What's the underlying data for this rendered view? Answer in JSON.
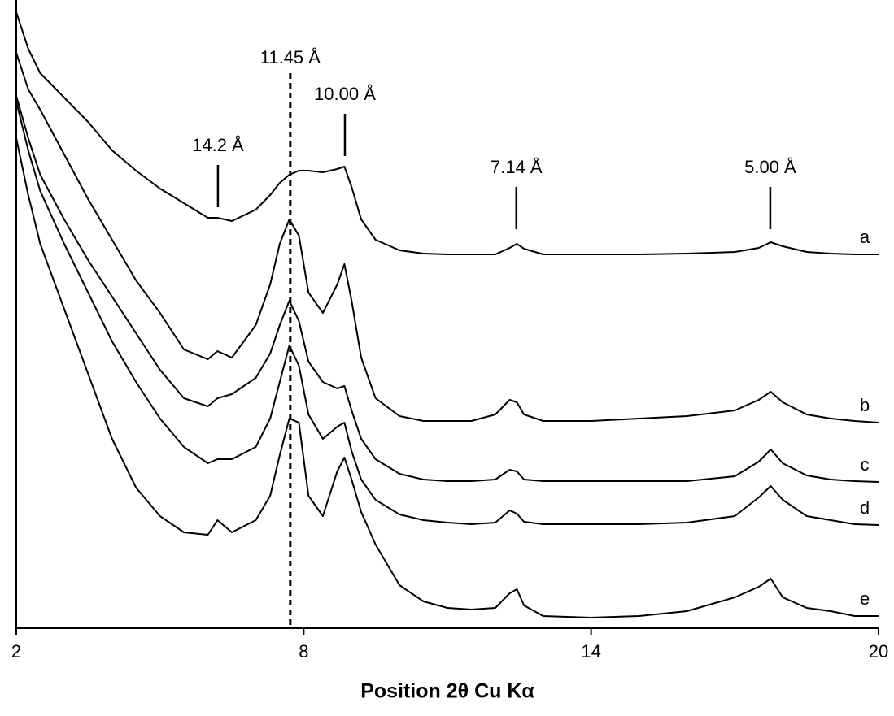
{
  "chart_data": {
    "type": "line",
    "x_label": "Position 2θ Cu Kα",
    "xlim": [
      2,
      20
    ],
    "xticks": [
      2,
      8,
      14,
      20
    ],
    "ylim": [
      0,
      773
    ],
    "x": [
      2,
      2.25,
      2.5,
      3,
      3.5,
      4,
      4.5,
      5,
      5.5,
      6,
      6.2,
      6.5,
      7,
      7.3,
      7.5,
      7.7,
      7.9,
      8.1,
      8.4,
      8.7,
      8.85,
      9.0,
      9.2,
      9.5,
      10,
      10.5,
      11,
      11.5,
      12,
      12.3,
      12.45,
      12.6,
      13,
      14,
      15,
      16,
      17,
      17.5,
      17.75,
      18,
      18.5,
      19,
      19.5,
      20
    ],
    "series": [
      {
        "name": "a",
        "color": "#000000",
        "values": [
          758,
          713,
          683,
          653,
          623,
          588,
          563,
          541,
          523,
          505,
          505,
          501,
          515,
          533,
          548,
          558,
          563,
          563,
          561,
          565,
          568,
          543,
          503,
          478,
          465,
          461,
          460,
          460,
          460,
          468,
          473,
          467,
          460,
          460,
          460,
          461,
          463,
          468,
          475,
          470,
          463,
          461,
          460,
          460
        ]
      },
      {
        "name": "b",
        "color": "#000000",
        "values": [
          708,
          663,
          638,
          583,
          528,
          478,
          428,
          388,
          343,
          331,
          341,
          333,
          373,
          423,
          473,
          503,
          483,
          413,
          388,
          423,
          448,
          403,
          333,
          283,
          261,
          255,
          255,
          255,
          263,
          281,
          278,
          263,
          255,
          255,
          258,
          261,
          268,
          281,
          291,
          278,
          263,
          258,
          255,
          253
        ]
      },
      {
        "name": "c",
        "color": "#000000",
        "values": [
          655,
          603,
          558,
          503,
          453,
          408,
          363,
          318,
          283,
          273,
          283,
          288,
          308,
          338,
          373,
          403,
          378,
          328,
          303,
          295,
          298,
          268,
          233,
          208,
          190,
          183,
          181,
          181,
          183,
          195,
          193,
          183,
          181,
          181,
          181,
          181,
          187,
          205,
          220,
          203,
          188,
          183,
          181,
          180
        ]
      },
      {
        "name": "d",
        "color": "#000000",
        "values": [
          648,
          588,
          538,
          473,
          413,
          353,
          303,
          258,
          223,
          203,
          208,
          208,
          223,
          258,
          303,
          348,
          323,
          263,
          233,
          248,
          253,
          218,
          183,
          158,
          140,
          133,
          130,
          128,
          130,
          145,
          141,
          131,
          128,
          128,
          128,
          130,
          138,
          161,
          175,
          158,
          138,
          133,
          128,
          127
        ]
      },
      {
        "name": "e",
        "color": "#000000",
        "values": [
          603,
          533,
          473,
          393,
          313,
          233,
          173,
          138,
          118,
          115,
          133,
          118,
          133,
          163,
          213,
          258,
          253,
          163,
          138,
          193,
          210,
          183,
          143,
          103,
          53,
          33,
          25,
          23,
          25,
          43,
          48,
          28,
          15,
          13,
          15,
          21,
          38,
          51,
          61,
          38,
          25,
          21,
          15,
          15
        ]
      }
    ],
    "reference_line": {
      "x": 7.72,
      "label": "11.45 Å"
    },
    "annotations": [
      {
        "text": "14.2 Å",
        "x": 6.21,
        "y": 518
      },
      {
        "text": "10.00 Å",
        "x": 8.86,
        "y": 581
      },
      {
        "text": "7.14 Å",
        "x": 12.44,
        "y": 491
      },
      {
        "text": "5.00 Å",
        "x": 17.74,
        "y": 491
      }
    ]
  }
}
